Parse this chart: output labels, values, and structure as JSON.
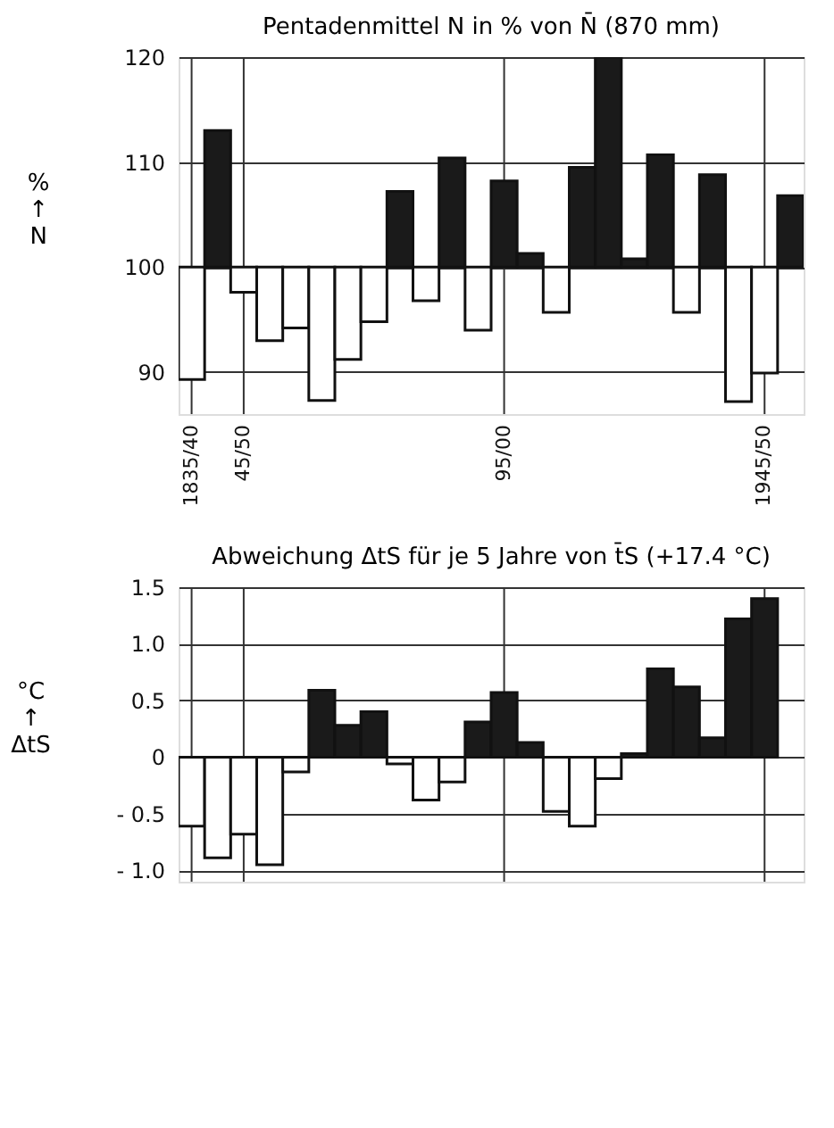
{
  "chart_data": [
    {
      "type": "bar",
      "title": "Pentadenmittel N in % von N̄ (870 mm)",
      "ylabel": "% ↑ N",
      "categories": [
        "1835/40",
        null,
        "45/50",
        null,
        null,
        null,
        null,
        null,
        null,
        null,
        null,
        null,
        "95/00",
        null,
        null,
        null,
        null,
        null,
        null,
        null,
        null,
        null,
        "1945/50",
        null
      ],
      "base": [
        100,
        100,
        100,
        100,
        100,
        100,
        100,
        100,
        100,
        100,
        100,
        100,
        100,
        100,
        100,
        100,
        100,
        100,
        100,
        100,
        100,
        100,
        100,
        100
      ],
      "values": [
        -10.7,
        13.0,
        -2.4,
        -7.0,
        -5.8,
        -12.7,
        -8.8,
        -5.2,
        7.2,
        -3.2,
        10.4,
        -6.0,
        8.2,
        1.3,
        -4.3,
        9.5,
        20.0,
        0.8,
        10.7,
        -4.3,
        8.8,
        -12.8,
        -10.1,
        6.8
      ],
      "colors": [
        "#ffffff",
        "#1a1a1a",
        "#ffffff",
        "#ffffff",
        "#ffffff",
        "#ffffff",
        "#ffffff",
        "#ffffff",
        "#1a1a1a",
        "#ffffff",
        "#1a1a1a",
        "#ffffff",
        "#1a1a1a",
        "#1a1a1a",
        "#ffffff",
        "#1a1a1a",
        "#1a1a1a",
        "#1a1a1a",
        "#1a1a1a",
        "#ffffff",
        "#1a1a1a",
        "#ffffff",
        "#ffffff",
        "#1a1a1a"
      ],
      "ylim": [
        86,
        120
      ],
      "yticks": [
        90,
        100,
        110,
        120
      ],
      "grid": true
    },
    {
      "type": "bar",
      "title": "Abweichung ΔtS für je 5 Jahre von t̄S (+17.4 °C)",
      "ylabel": "°C ↑ ΔtS",
      "categories": [
        null,
        null,
        null,
        null,
        null,
        null,
        null,
        null,
        null,
        null,
        null,
        null,
        null,
        null,
        null,
        null,
        null,
        null,
        null,
        null,
        null,
        null,
        null,
        null
      ],
      "values": [
        -0.61,
        -0.89,
        -0.68,
        -0.95,
        -0.13,
        0.59,
        0.28,
        0.4,
        -0.06,
        -0.38,
        -0.22,
        0.31,
        0.57,
        0.13,
        -0.48,
        -0.61,
        -0.19,
        0.03,
        0.78,
        0.62,
        0.17,
        1.22,
        1.4,
        null
      ],
      "colors": [
        "#ffffff",
        "#ffffff",
        "#ffffff",
        "#ffffff",
        "#ffffff",
        "#1a1a1a",
        "#1a1a1a",
        "#1a1a1a",
        "#ffffff",
        "#ffffff",
        "#ffffff",
        "#1a1a1a",
        "#1a1a1a",
        "#1a1a1a",
        "#ffffff",
        "#ffffff",
        "#ffffff",
        "#1a1a1a",
        "#1a1a1a",
        "#1a1a1a",
        "#1a1a1a",
        "#1a1a1a",
        "#1a1a1a",
        "#ffffff"
      ],
      "ylim": [
        -1.1,
        1.5
      ],
      "yticks": [
        1.5,
        {
          "value": 1.0,
          "label": "1.0"
        },
        0.5,
        0,
        {
          "value": -0.5,
          "label": "- 0.5"
        },
        {
          "value": -1.0,
          "label": "- 1.0"
        }
      ],
      "grid": true,
      "tick_labels": "y"
    }
  ]
}
